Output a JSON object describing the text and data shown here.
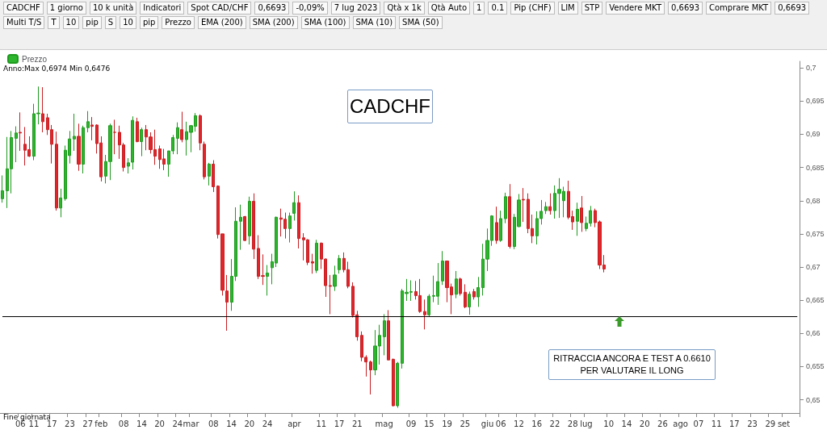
{
  "chart_data": {
    "type": "candlestick",
    "title": "CADCHF",
    "annotations": [
      "RITRACCIA ANCORA E TEST A 0.6610 PER VALUTARE IL LONG",
      "Anno:Max 0,6974 Min 0,6476",
      "Fine giornata",
      "CADCHF",
      "1 giorno",
      "10 k unità",
      "Indicatori",
      "Spot CAD/CHF",
      "0,6693",
      "-0,09%",
      "7 lug 2023",
      "Qtà x 1k",
      "Qtà Auto",
      "1",
      "0.1",
      "Pip (CHF)",
      "LIM",
      "STP",
      "Vendere MKT",
      "0,6693",
      "Comprare MKT",
      "0,6693",
      "Multi T/S",
      "T",
      "10",
      "pip",
      "S",
      "10",
      "pip",
      "Prezzo",
      "EMA (200)",
      "SMA (200)",
      "SMA (100)",
      "SMA (10)",
      "SMA (50)"
    ],
    "categories": [
      null,
      null,
      null,
      null,
      "06",
      null,
      null,
      "11",
      null,
      null,
      null,
      "17",
      null,
      null,
      null,
      "23",
      null,
      null,
      null,
      "27",
      null,
      null,
      "feb",
      null,
      null,
      null,
      null,
      "08",
      null,
      null,
      null,
      "14",
      null,
      null,
      null,
      "20",
      null,
      null,
      null,
      "24",
      null,
      null,
      "mar",
      null,
      null,
      null,
      null,
      "08",
      null,
      null,
      null,
      "14",
      null,
      null,
      null,
      "20",
      null,
      null,
      null,
      "24",
      null,
      null,
      null,
      null,
      null,
      "apr",
      null,
      null,
      null,
      null,
      null,
      "11",
      null,
      null,
      null,
      "17",
      null,
      null,
      null,
      "21",
      null,
      null,
      null,
      null,
      null,
      "mag",
      null,
      null,
      null,
      null,
      null,
      "09",
      null,
      null,
      null,
      "15",
      null,
      null,
      null,
      "19",
      null,
      null,
      null,
      "25",
      null,
      null,
      null,
      null,
      "giu",
      null,
      null,
      "06",
      null,
      null,
      null,
      "12",
      null,
      null,
      null,
      "16",
      null,
      null,
      null,
      "22",
      null,
      null,
      null,
      "28",
      null,
      null,
      "lug",
      null,
      null,
      null,
      null,
      "10",
      null,
      null,
      null,
      "14",
      null,
      null,
      null,
      "20",
      null,
      null,
      null,
      "26",
      null,
      null,
      null,
      "ago",
      null,
      null,
      null,
      "07",
      null,
      null,
      null,
      "11",
      null,
      null,
      null,
      "17",
      null,
      null,
      null,
      "23",
      null,
      null,
      null,
      "29",
      null,
      null,
      "set",
      null,
      null,
      null
    ],
    "series": [
      {
        "name": "Prezzo",
        "ohlc": [
          [
            0.6803,
            0.6838,
            0.6797,
            0.6815
          ],
          [
            0.6815,
            0.6896,
            0.6789,
            0.6848
          ],
          [
            0.6848,
            0.6905,
            0.6811,
            0.6895
          ],
          [
            0.6894,
            0.6912,
            0.6858,
            0.6902
          ],
          [
            0.6903,
            0.6933,
            0.6875,
            0.6902
          ],
          [
            0.6885,
            0.6911,
            0.6853,
            0.6876
          ],
          [
            0.6877,
            0.6897,
            0.6866,
            0.6867
          ],
          [
            0.6867,
            0.6946,
            0.6861,
            0.6931
          ],
          [
            0.6931,
            0.6972,
            0.6915,
            0.6932
          ],
          [
            0.6931,
            0.6971,
            0.6903,
            0.6919
          ],
          [
            0.6925,
            0.6931,
            0.6899,
            0.6907
          ],
          [
            0.6907,
            0.6914,
            0.6856,
            0.6885
          ],
          [
            0.6885,
            0.6904,
            0.6785,
            0.6789
          ],
          [
            0.6789,
            0.6818,
            0.6775,
            0.6804
          ],
          [
            0.6803,
            0.6883,
            0.68,
            0.6876
          ],
          [
            0.6868,
            0.6905,
            0.6856,
            0.6893
          ],
          [
            0.6893,
            0.6931,
            0.6875,
            0.6897
          ],
          [
            0.6897,
            0.6916,
            0.6845,
            0.6855
          ],
          [
            0.6855,
            0.6913,
            0.6841,
            0.691
          ],
          [
            0.691,
            0.6935,
            0.6903,
            0.6919
          ],
          [
            0.6914,
            0.6926,
            0.6891,
            0.6912
          ],
          [
            0.6914,
            0.6915,
            0.6871,
            0.6886
          ],
          [
            0.6887,
            0.6897,
            0.6829,
            0.6836
          ],
          [
            0.6837,
            0.6869,
            0.6826,
            0.6859
          ],
          [
            0.6859,
            0.6916,
            0.6831,
            0.6913
          ],
          [
            0.6903,
            0.6922,
            0.687,
            0.6903
          ],
          [
            0.6903,
            0.6913,
            0.6863,
            0.6884
          ],
          [
            0.6884,
            0.6887,
            0.6844,
            0.685
          ],
          [
            0.6852,
            0.6864,
            0.6841,
            0.6857
          ],
          [
            0.6858,
            0.6927,
            0.6847,
            0.6921
          ],
          [
            0.6919,
            0.6925,
            0.6888,
            0.6889
          ],
          [
            0.6889,
            0.691,
            0.6867,
            0.6907
          ],
          [
            0.6907,
            0.6914,
            0.6876,
            0.6896
          ],
          [
            0.6896,
            0.6903,
            0.6871,
            0.6877
          ],
          [
            0.6877,
            0.6907,
            0.6854,
            0.6867
          ],
          [
            0.6878,
            0.6883,
            0.6848,
            0.6862
          ],
          [
            0.6863,
            0.6878,
            0.6846,
            0.6855
          ],
          [
            0.6855,
            0.6875,
            0.6836,
            0.6875
          ],
          [
            0.6875,
            0.6899,
            0.687,
            0.6895
          ],
          [
            0.6894,
            0.6918,
            0.687,
            0.691
          ],
          [
            0.6907,
            0.6934,
            0.6888,
            0.6892
          ],
          [
            0.6892,
            0.6919,
            0.6868,
            0.6904
          ],
          [
            0.6903,
            0.6914,
            0.6873,
            0.6913
          ],
          [
            0.6912,
            0.6932,
            0.6904,
            0.6928
          ],
          [
            0.6928,
            0.693,
            0.6876,
            0.6887
          ],
          [
            0.6885,
            0.6889,
            0.6832,
            0.6836
          ],
          [
            0.6837,
            0.6857,
            0.6823,
            0.6855
          ],
          [
            0.6855,
            0.6861,
            0.6813,
            0.6821
          ],
          [
            0.6822,
            0.6823,
            0.6743,
            0.6749
          ],
          [
            0.675,
            0.675,
            0.6657,
            0.6665
          ],
          [
            0.6664,
            0.6688,
            0.6604,
            0.6647
          ],
          [
            0.6647,
            0.6712,
            0.6634,
            0.6686
          ],
          [
            0.6686,
            0.679,
            0.6679,
            0.6769
          ],
          [
            0.6769,
            0.6794,
            0.6726,
            0.6775
          ],
          [
            0.6776,
            0.6777,
            0.6739,
            0.674
          ],
          [
            0.6747,
            0.6806,
            0.6734,
            0.6799
          ],
          [
            0.6799,
            0.6811,
            0.6712,
            0.6727
          ],
          [
            0.6728,
            0.6748,
            0.6682,
            0.6686
          ],
          [
            0.6687,
            0.6719,
            0.6673,
            0.6686
          ],
          [
            0.6686,
            0.6703,
            0.6657,
            0.6691
          ],
          [
            0.6699,
            0.672,
            0.6674,
            0.6708
          ],
          [
            0.6706,
            0.6776,
            0.67,
            0.6775
          ],
          [
            0.6774,
            0.6788,
            0.6746,
            0.6772
          ],
          [
            0.6772,
            0.6782,
            0.6743,
            0.6758
          ],
          [
            0.6758,
            0.6782,
            0.6737,
            0.6777
          ],
          [
            0.6781,
            0.6814,
            0.677,
            0.6797
          ],
          [
            0.6797,
            0.6808,
            0.6728,
            0.6743
          ],
          [
            0.6744,
            0.6751,
            0.671,
            0.6741
          ],
          [
            0.6741,
            0.6742,
            0.6703,
            0.6707
          ],
          [
            0.6708,
            0.672,
            0.669,
            0.6706
          ],
          [
            0.6695,
            0.6741,
            0.6691,
            0.6736
          ],
          [
            0.6736,
            0.6737,
            0.6697,
            0.6712
          ],
          [
            0.6712,
            0.6713,
            0.6655,
            0.6672
          ],
          [
            0.6672,
            0.6688,
            0.6629,
            0.6671
          ],
          [
            0.6671,
            0.6702,
            0.6664,
            0.6688
          ],
          [
            0.6696,
            0.6718,
            0.669,
            0.6713
          ],
          [
            0.6713,
            0.6722,
            0.6692,
            0.6696
          ],
          [
            0.6696,
            0.6708,
            0.6668,
            0.6671
          ],
          [
            0.6671,
            0.6677,
            0.6624,
            0.6627
          ],
          [
            0.6628,
            0.6634,
            0.6589,
            0.6595
          ],
          [
            0.6597,
            0.6603,
            0.6558,
            0.6564
          ],
          [
            0.6564,
            0.6567,
            0.6535,
            0.6557
          ],
          [
            0.6557,
            0.6559,
            0.6508,
            0.6545
          ],
          [
            0.6545,
            0.6605,
            0.6537,
            0.6581
          ],
          [
            0.6581,
            0.6613,
            0.6553,
            0.6597
          ],
          [
            0.6595,
            0.6629,
            0.6567,
            0.6619
          ],
          [
            0.6619,
            0.6635,
            0.656,
            0.656
          ],
          [
            0.6561,
            0.6562,
            0.649,
            0.6491
          ],
          [
            0.6491,
            0.6557,
            0.6488,
            0.6555
          ],
          [
            0.6555,
            0.6667,
            0.6547,
            0.6664
          ],
          [
            0.666,
            0.6682,
            0.6649,
            0.6662
          ],
          [
            0.6662,
            0.668,
            0.6649,
            0.6663
          ],
          [
            0.6663,
            0.6679,
            0.6651,
            0.6657
          ],
          [
            0.6657,
            0.6682,
            0.6631,
            0.6633
          ],
          [
            0.6633,
            0.6651,
            0.6606,
            0.6628
          ],
          [
            0.6628,
            0.6659,
            0.6625,
            0.6656
          ],
          [
            0.6656,
            0.6687,
            0.6647,
            0.6657
          ],
          [
            0.6656,
            0.6706,
            0.6643,
            0.6678
          ],
          [
            0.6679,
            0.6724,
            0.6673,
            0.6709
          ],
          [
            0.6709,
            0.6709,
            0.6647,
            0.6669
          ],
          [
            0.667,
            0.6675,
            0.6629,
            0.6658
          ],
          [
            0.6659,
            0.6694,
            0.6653,
            0.6682
          ],
          [
            0.6682,
            0.6684,
            0.6657,
            0.666
          ],
          [
            0.6662,
            0.6674,
            0.6638,
            0.664
          ],
          [
            0.664,
            0.6663,
            0.6628,
            0.6659
          ],
          [
            0.6663,
            0.6667,
            0.6651,
            0.6655
          ],
          [
            0.6655,
            0.6685,
            0.664,
            0.6669
          ],
          [
            0.6669,
            0.6735,
            0.6657,
            0.6712
          ],
          [
            0.6712,
            0.6758,
            0.6694,
            0.674
          ],
          [
            0.674,
            0.6778,
            0.6732,
            0.6777
          ],
          [
            0.6767,
            0.6791,
            0.6735,
            0.674
          ],
          [
            0.674,
            0.6785,
            0.6738,
            0.6773
          ],
          [
            0.6773,
            0.6812,
            0.6766,
            0.6806
          ],
          [
            0.6806,
            0.6825,
            0.6728,
            0.6731
          ],
          [
            0.6731,
            0.678,
            0.6727,
            0.6775
          ],
          [
            0.6761,
            0.681,
            0.676,
            0.6801
          ],
          [
            0.6802,
            0.6819,
            0.6768,
            0.6801
          ],
          [
            0.6802,
            0.6811,
            0.6751,
            0.6758
          ],
          [
            0.6758,
            0.6779,
            0.6736,
            0.6747
          ],
          [
            0.6747,
            0.6784,
            0.6734,
            0.6773
          ],
          [
            0.6773,
            0.6801,
            0.6764,
            0.6784
          ],
          [
            0.6785,
            0.6798,
            0.678,
            0.6791
          ],
          [
            0.6791,
            0.6811,
            0.6779,
            0.6785
          ],
          [
            0.6785,
            0.6823,
            0.6773,
            0.6811
          ],
          [
            0.6811,
            0.6834,
            0.6774,
            0.6817
          ],
          [
            0.68,
            0.6821,
            0.6775,
            0.6814
          ],
          [
            0.6814,
            0.683,
            0.6772,
            0.6775
          ],
          [
            0.6776,
            0.6785,
            0.6756,
            0.6768
          ],
          [
            0.6769,
            0.6797,
            0.6747,
            0.6787
          ],
          [
            0.6789,
            0.6807,
            0.6753,
            0.6767
          ],
          [
            0.6758,
            0.6776,
            0.6754,
            0.6766
          ],
          [
            0.6766,
            0.6792,
            0.6761,
            0.6785
          ],
          [
            0.6785,
            0.6788,
            0.676,
            0.6767
          ],
          [
            0.6768,
            0.677,
            0.6697,
            0.6703
          ],
          [
            0.6703,
            0.6718,
            0.6692,
            0.6697
          ],
          null,
          null,
          null,
          null,
          null,
          null,
          null,
          null,
          null,
          null,
          null,
          null,
          null,
          null,
          null,
          null,
          null,
          null,
          null,
          null,
          null,
          null,
          null,
          null,
          null,
          null,
          null,
          null,
          null,
          null,
          null,
          null,
          null,
          null,
          null,
          null,
          null,
          null,
          null,
          null,
          null,
          null,
          null
        ]
      }
    ],
    "ylim": [
      0.648,
      0.701
    ],
    "yticks": [
      {
        "value": 0.65,
        "label": "0,65"
      },
      {
        "value": 0.655,
        "label": "0,655"
      },
      {
        "value": 0.66,
        "label": "0,66"
      },
      {
        "value": 0.665,
        "label": "0,665"
      },
      {
        "value": 0.67,
        "label": "0,67"
      },
      {
        "value": 0.675,
        "label": "0,675"
      },
      {
        "value": 0.68,
        "label": "0,68"
      },
      {
        "value": 0.685,
        "label": "0,685"
      },
      {
        "value": 0.69,
        "label": "0,69"
      },
      {
        "value": 0.695,
        "label": "0,695"
      },
      {
        "value": 0.7,
        "label": "0,7"
      }
    ],
    "ref_lines": [
      {
        "axis": "y",
        "value": 0.6625,
        "color": "#000000"
      }
    ],
    "grid": false,
    "legend": "top left"
  }
}
